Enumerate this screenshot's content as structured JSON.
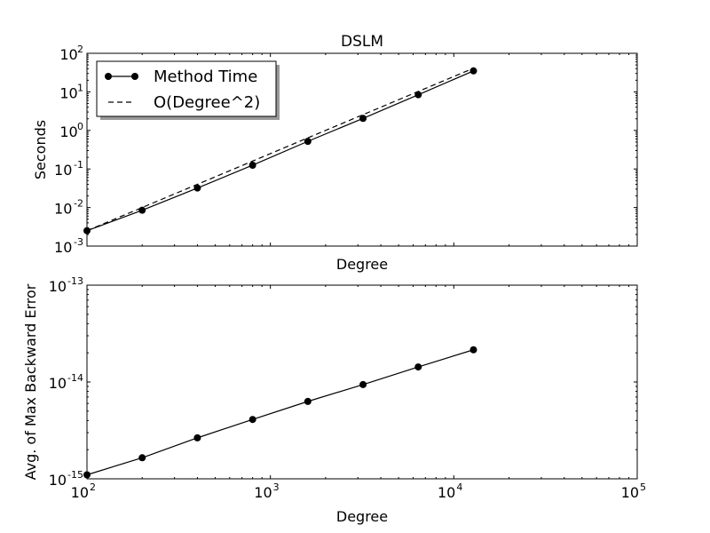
{
  "chart_data": [
    {
      "type": "line",
      "title": "DSLM",
      "xlabel": "Degree",
      "ylabel": "Seconds",
      "xscale": "log",
      "yscale": "log",
      "xlim": [
        100,
        100000
      ],
      "ylim": [
        0.001,
        100
      ],
      "x_ticks": [
        {
          "value": 100,
          "base": "10",
          "exp": "2"
        },
        {
          "value": 1000,
          "base": "10",
          "exp": "3"
        },
        {
          "value": 10000,
          "base": "10",
          "exp": "4"
        },
        {
          "value": 100000,
          "base": "10",
          "exp": "5"
        }
      ],
      "y_ticks": [
        {
          "value": 0.001,
          "base": "10",
          "exp": "-3"
        },
        {
          "value": 0.01,
          "base": "10",
          "exp": "-2"
        },
        {
          "value": 0.1,
          "base": "10",
          "exp": "-1"
        },
        {
          "value": 1,
          "base": "10",
          "exp": "0"
        },
        {
          "value": 10,
          "base": "10",
          "exp": "1"
        },
        {
          "value": 100,
          "base": "10",
          "exp": "2"
        }
      ],
      "show_x_ticklabels": false,
      "legend_position": "top-left",
      "series": [
        {
          "name": "Method Time",
          "style": "solid-markers",
          "x": [
            100,
            200,
            400,
            800,
            1600,
            3200,
            6400,
            12800
          ],
          "y": [
            0.0025,
            0.0085,
            0.032,
            0.125,
            0.52,
            2.05,
            8.4,
            35
          ]
        },
        {
          "name": "O(Degree^2)",
          "style": "dashed",
          "x": [
            100,
            200,
            400,
            800,
            1600,
            3200,
            6400,
            12800
          ],
          "y": [
            0.0025,
            0.01,
            0.04,
            0.16,
            0.64,
            2.56,
            10.24,
            40.96
          ]
        }
      ]
    },
    {
      "type": "line",
      "title": "",
      "xlabel": "Degree",
      "ylabel": "Avg. of Max Backward Error",
      "xscale": "log",
      "yscale": "log",
      "xlim": [
        100,
        100000
      ],
      "ylim": [
        1e-15,
        1e-13
      ],
      "x_ticks": [
        {
          "value": 100,
          "base": "10",
          "exp": "2"
        },
        {
          "value": 1000,
          "base": "10",
          "exp": "3"
        },
        {
          "value": 10000,
          "base": "10",
          "exp": "4"
        },
        {
          "value": 100000,
          "base": "10",
          "exp": "5"
        }
      ],
      "y_ticks": [
        {
          "value": 1e-15,
          "base": "10",
          "exp": "-15"
        },
        {
          "value": 1e-14,
          "base": "10",
          "exp": "-14"
        },
        {
          "value": 1e-13,
          "base": "10",
          "exp": "-13"
        }
      ],
      "show_x_ticklabels": true,
      "series": [
        {
          "style": "solid-markers",
          "x": [
            100,
            200,
            400,
            800,
            1600,
            3200,
            6400,
            12800
          ],
          "y": [
            1.1e-15,
            1.65e-15,
            2.65e-15,
            4.1e-15,
            6.3e-15,
            9.4e-15,
            1.43e-14,
            2.15e-14
          ]
        }
      ]
    }
  ]
}
